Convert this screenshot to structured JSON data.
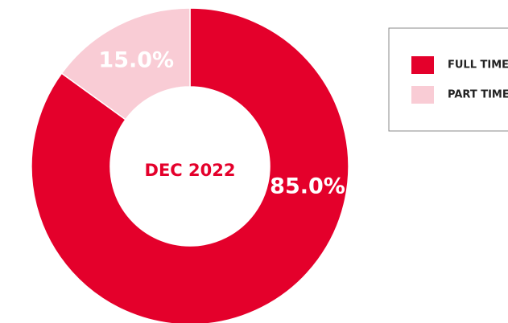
{
  "chart_data": {
    "type": "pie",
    "center_label": "DEC 2022",
    "categories": [
      "FULL TIME",
      "PART TIME"
    ],
    "values": [
      85.0,
      15.0
    ],
    "value_labels": [
      "85.0%",
      "15.0%"
    ],
    "colors": [
      "#e4002b",
      "#f9ccd5"
    ],
    "legend": "top-right"
  }
}
